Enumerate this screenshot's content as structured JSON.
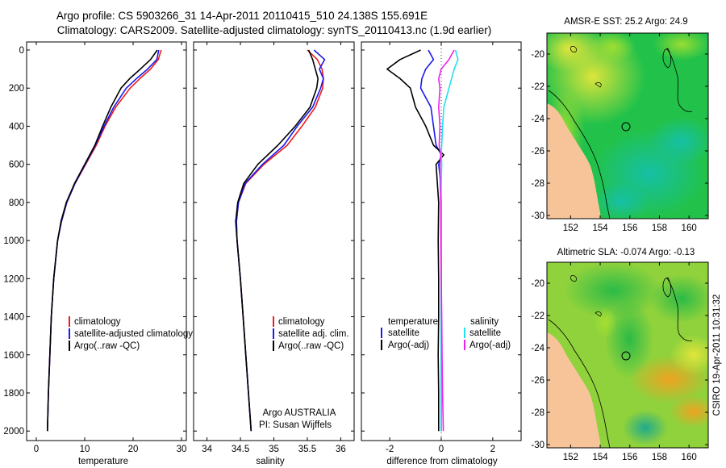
{
  "header": {
    "title_line1": "Argo profile: CS 5903266_31 14-Apr-2011 20110415_510 24.138S 155.691E",
    "title_line2": "Climatology: CARS2009. Satellite-adjusted climatology: synTS_20110413.nc (1.9d earlier)"
  },
  "colors": {
    "climatology": "#ee1c1c",
    "satellite": "#1a1aee",
    "argo": "#000000",
    "salinity_sat": "#22e0ee",
    "salinity_argo": "#ee22ee",
    "land": "#f7c49a"
  },
  "chart_data": [
    {
      "type": "line",
      "name": "temperature-profile",
      "xlabel": "temperature",
      "xlim": [
        -2,
        31
      ],
      "ylim": [
        2050,
        0
      ],
      "xticks": [
        "0",
        "10",
        "20",
        "30"
      ],
      "yticks": [
        "0",
        "200",
        "400",
        "600",
        "800",
        "1000",
        "1200",
        "1400",
        "1600",
        "1800",
        "2000"
      ],
      "legend": [
        "climatology",
        "satellite-adjusted climatology",
        "Argo(..raw -QC)"
      ],
      "depth": [
        0,
        50,
        100,
        150,
        200,
        300,
        400,
        500,
        600,
        700,
        800,
        900,
        1000,
        1200,
        1400,
        1600,
        1800,
        2000
      ],
      "series": [
        {
          "name": "climatology",
          "values": [
            25.8,
            25.2,
            23.6,
            21.4,
            19.4,
            16.4,
            14.2,
            12.4,
            10.2,
            8.0,
            6.3,
            5.2,
            4.4,
            3.6,
            3.1,
            2.8,
            2.5,
            2.3
          ]
        },
        {
          "name": "satellite-adjusted climatology",
          "values": [
            25.3,
            24.9,
            23.0,
            20.7,
            18.6,
            16.0,
            14.0,
            12.2,
            10.1,
            8.0,
            6.3,
            5.2,
            4.4,
            3.6,
            3.1,
            2.8,
            2.5,
            2.3
          ]
        },
        {
          "name": "Argo(..raw -QC)",
          "values": [
            25.0,
            23.6,
            21.5,
            19.3,
            17.5,
            15.4,
            13.7,
            12.1,
            10.0,
            7.9,
            6.2,
            5.1,
            4.4,
            3.6,
            3.1,
            2.8,
            2.5,
            2.3
          ]
        }
      ]
    },
    {
      "type": "line",
      "name": "salinity-profile",
      "xlabel": "salinity",
      "xlim": [
        33.8,
        36.2
      ],
      "ylim": [
        2050,
        0
      ],
      "xticks": [
        "34",
        "34.5",
        "35",
        "35.5",
        "36"
      ],
      "legend": [
        "climatology",
        "satellite adj. clim.",
        "Argo(..raw -QC)"
      ],
      "annotation": [
        "Argo AUSTRALIA",
        "PI: Susan Wijffels"
      ],
      "depth": [
        0,
        50,
        100,
        150,
        200,
        300,
        400,
        500,
        600,
        700,
        800,
        900,
        1000,
        1200,
        1400,
        1600,
        1800,
        2000
      ],
      "series": [
        {
          "name": "climatology",
          "values": [
            35.5,
            35.65,
            35.72,
            35.74,
            35.73,
            35.62,
            35.42,
            35.2,
            34.85,
            34.58,
            34.47,
            34.44,
            34.45,
            34.5,
            34.54,
            34.58,
            34.62,
            34.66
          ]
        },
        {
          "name": "satellite adj. clim.",
          "values": [
            35.6,
            35.76,
            35.68,
            35.74,
            35.7,
            35.58,
            35.35,
            35.15,
            34.83,
            34.57,
            34.47,
            34.44,
            34.45,
            34.5,
            34.54,
            34.58,
            34.62,
            34.66
          ]
        },
        {
          "name": "Argo(..raw -QC)",
          "values": [
            35.52,
            35.58,
            35.62,
            35.66,
            35.64,
            35.54,
            35.32,
            35.06,
            34.76,
            34.55,
            34.46,
            34.43,
            34.45,
            34.5,
            34.54,
            34.58,
            34.62,
            34.66
          ]
        }
      ]
    },
    {
      "type": "line",
      "name": "difference-from-climatology",
      "xlabel": "difference from climatology",
      "xlim": [
        -3.1,
        3.1
      ],
      "ylim": [
        2050,
        0
      ],
      "xticks": [
        "-2",
        "0",
        "2"
      ],
      "legend": {
        "temperature_title": "temperature",
        "salinity_title": "salinity",
        "satellite": "satellite",
        "argo": "Argo(-adj)"
      },
      "depth": [
        0,
        50,
        100,
        150,
        200,
        300,
        400,
        500,
        550,
        600,
        700,
        800,
        1000,
        1200,
        1400,
        1600,
        1800,
        2000
      ],
      "series": [
        {
          "name": "temperature satellite",
          "values": [
            -0.5,
            -0.3,
            -0.6,
            -0.75,
            -0.8,
            -0.4,
            -0.3,
            -0.2,
            0.0,
            -0.1,
            -0.02,
            0.0,
            0.0,
            0.0,
            0.0,
            0.0,
            0.0,
            0.0
          ]
        },
        {
          "name": "temperature Argo(-adj)",
          "values": [
            -0.8,
            -1.6,
            -2.1,
            -1.6,
            -1.2,
            -1.0,
            -0.6,
            -0.3,
            0.1,
            -0.2,
            -0.15,
            -0.1,
            -0.12,
            -0.1,
            -0.1,
            -0.12,
            -0.1,
            -0.1
          ]
        },
        {
          "name": "salinity satellite",
          "values": [
            0.55,
            0.65,
            0.5,
            0.4,
            0.3,
            0.1,
            0.05,
            0.02,
            0.0,
            0.02,
            0.0,
            0.0,
            0.0,
            0.0,
            0.0,
            0.0,
            0.0,
            0.0
          ]
        },
        {
          "name": "salinity Argo(-adj)",
          "values": [
            0.5,
            0.3,
            0.0,
            -0.1,
            -0.05,
            -0.1,
            -0.05,
            -0.08,
            -0.02,
            -0.05,
            -0.04,
            -0.02,
            -0.02,
            0.0,
            0.02,
            0.03,
            0.05,
            0.08
          ]
        }
      ]
    },
    {
      "type": "heatmap",
      "name": "amsr-sst-map",
      "title": "AMSR-E SST: 25.2 Argo: 24.9",
      "xticks": [
        "152",
        "154",
        "156",
        "158",
        "160"
      ],
      "yticks": [
        "-20",
        "-22",
        "-24",
        "-26",
        "-28",
        "-30"
      ],
      "xlim": [
        150.4,
        161.3
      ],
      "ylim": [
        -30.2,
        -18.7
      ],
      "float_position": {
        "lon": 155.691,
        "lat": -24.138
      }
    },
    {
      "type": "heatmap",
      "name": "altimetric-sla-map",
      "title": "Altimetric SLA: -0.074 Argo: -0.13",
      "xticks": [
        "152",
        "154",
        "156",
        "158",
        "160"
      ],
      "yticks": [
        "-20",
        "-22",
        "-24",
        "-26",
        "-28",
        "-30"
      ],
      "xlim": [
        150.4,
        161.3
      ],
      "ylim": [
        -30.2,
        -18.7
      ],
      "float_position": {
        "lon": 155.691,
        "lat": -24.138
      }
    }
  ],
  "footer": {
    "credit": "CSIRO 19-Apr-2011 10:31:32"
  }
}
